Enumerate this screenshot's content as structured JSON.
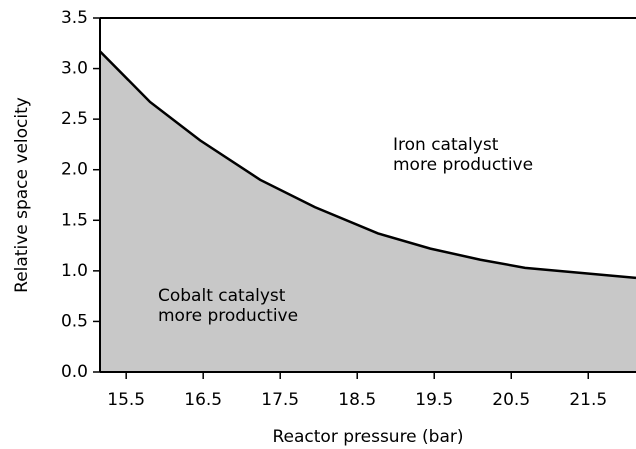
{
  "chart_data": {
    "type": "area",
    "x_label": "Reactor pressure (bar)",
    "y_label": "Relative space velocity",
    "x": [
      15.16,
      15.81,
      16.46,
      17.24,
      17.95,
      18.77,
      19.45,
      20.1,
      20.68,
      21.4,
      22.12
    ],
    "values": [
      3.17,
      2.67,
      2.29,
      1.9,
      1.63,
      1.37,
      1.22,
      1.11,
      1.03,
      0.98,
      0.93
    ],
    "color": "#c8c8c8",
    "line_color": "#000000",
    "xlim": [
      15.16,
      22.12
    ],
    "xticks": [
      15.5,
      16.5,
      17.5,
      18.5,
      19.5,
      20.5,
      21.5
    ],
    "ylim": [
      0,
      3.5
    ],
    "yticks": [
      {
        "value": 0,
        "label": "0.0"
      },
      0.5,
      {
        "value": 1,
        "label": "1.0"
      },
      1.5,
      {
        "value": 2,
        "label": "2.0"
      },
      2.5,
      {
        "value": 3,
        "label": "3.0"
      },
      3.5
    ],
    "annotations": [
      [
        "Iron catalyst",
        "more productive"
      ],
      [
        "Cobalt catalyst",
        "more productive"
      ]
    ]
  }
}
